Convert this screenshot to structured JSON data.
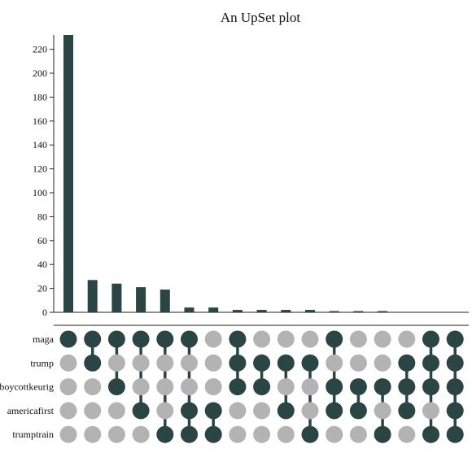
{
  "chart_data": {
    "type": "bar",
    "title": "An UpSet plot",
    "ylim": [
      0,
      232
    ],
    "yticks": [
      0,
      20,
      40,
      60,
      80,
      100,
      120,
      140,
      160,
      180,
      200,
      220
    ],
    "sets": [
      "maga",
      "trump",
      "boycottkeurig",
      "americafirst",
      "trumptrain"
    ],
    "intersections": [
      {
        "members": [
          "maga"
        ],
        "count": 232
      },
      {
        "members": [
          "maga",
          "trump"
        ],
        "count": 27
      },
      {
        "members": [
          "maga",
          "boycottkeurig"
        ],
        "count": 24
      },
      {
        "members": [
          "maga",
          "americafirst"
        ],
        "count": 21
      },
      {
        "members": [
          "maga",
          "trumptrain"
        ],
        "count": 19
      },
      {
        "members": [
          "maga",
          "americafirst",
          "trumptrain"
        ],
        "count": 4
      },
      {
        "members": [
          "americafirst",
          "trumptrain"
        ],
        "count": 4
      },
      {
        "members": [
          "maga",
          "trump",
          "boycottkeurig"
        ],
        "count": 2
      },
      {
        "members": [
          "trump",
          "boycottkeurig"
        ],
        "count": 2
      },
      {
        "members": [
          "trump",
          "americafirst"
        ],
        "count": 2
      },
      {
        "members": [
          "trump",
          "trumptrain"
        ],
        "count": 2
      },
      {
        "members": [
          "maga",
          "boycottkeurig",
          "americafirst"
        ],
        "count": 1
      },
      {
        "members": [
          "boycottkeurig",
          "americafirst"
        ],
        "count": 1
      },
      {
        "members": [
          "boycottkeurig",
          "trumptrain"
        ],
        "count": 1
      },
      {
        "members": [
          "trump",
          "boycottkeurig",
          "americafirst"
        ],
        "count": 0
      },
      {
        "members": [
          "maga",
          "trump",
          "boycottkeurig",
          "trumptrain"
        ],
        "count": 0
      },
      {
        "members": [
          "maga",
          "trump",
          "boycottkeurig",
          "americafirst",
          "trumptrain"
        ],
        "count": 0
      }
    ],
    "colors": {
      "bar": "#2b4444",
      "active": "#2b4444",
      "inactive": "#b3b3b3",
      "axis": "#222222"
    }
  }
}
